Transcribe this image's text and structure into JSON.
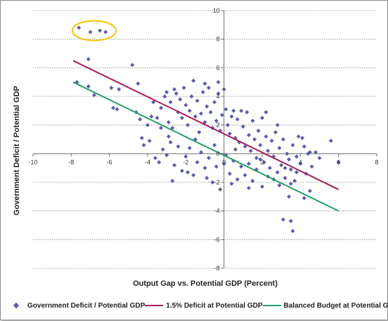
{
  "chart_data": {
    "type": "scatter",
    "xlabel": "Output Gap vs. Potential GDP (Percent)",
    "ylabel": "Government Deficit / Potential GDP",
    "xlim": [
      -10,
      8
    ],
    "ylim": [
      -8,
      10
    ],
    "xticks": [
      -10,
      -8,
      -6,
      -4,
      -2,
      0,
      2,
      4,
      6,
      8
    ],
    "yticks": [
      -8,
      -6,
      -4,
      -2,
      0,
      2,
      4,
      6,
      8,
      10
    ],
    "grid": "horizontal",
    "legend_position": "bottom",
    "highlight": {
      "shape": "ellipse",
      "color": "#f5c200",
      "center": [
        -6.8,
        8.6
      ]
    },
    "colors": {
      "scatter": "#5b5ea6",
      "deficit_line": "#a3205a",
      "balanced_line": "#21a06a",
      "grid": "#8a8a8a"
    },
    "series": [
      {
        "name": "Government Deficit / Potential GDP",
        "kind": "scatter",
        "points": [
          [
            -7.6,
            8.8
          ],
          [
            -7.0,
            8.5
          ],
          [
            -6.5,
            8.6
          ],
          [
            -6.2,
            8.5
          ],
          [
            -7.7,
            5.0
          ],
          [
            -7.1,
            6.6
          ],
          [
            -7.1,
            4.7
          ],
          [
            -6.8,
            4.1
          ],
          [
            -5.9,
            4.6
          ],
          [
            -5.5,
            4.5
          ],
          [
            -5.8,
            3.2
          ],
          [
            -5.6,
            3.1
          ],
          [
            -4.8,
            6.2
          ],
          [
            -4.6,
            2.9
          ],
          [
            -4.4,
            2.4
          ],
          [
            -4.3,
            1.1
          ],
          [
            -4.2,
            0.6
          ],
          [
            -4.5,
            4.9
          ],
          [
            -3.7,
            3.6
          ],
          [
            -3.5,
            2.5
          ],
          [
            -3.3,
            3.2
          ],
          [
            -3.1,
            4.0
          ],
          [
            -3.0,
            4.3
          ],
          [
            -2.9,
            2.2
          ],
          [
            -2.8,
            3.6
          ],
          [
            -2.7,
            1.8
          ],
          [
            -2.6,
            4.5
          ],
          [
            -2.5,
            4.2
          ],
          [
            -2.4,
            2.9
          ],
          [
            -2.3,
            3.8
          ],
          [
            -2.2,
            2.5
          ],
          [
            -2.1,
            4.6
          ],
          [
            -2.0,
            3.4
          ],
          [
            -1.9,
            2.0
          ],
          [
            -1.8,
            3.0
          ],
          [
            -1.7,
            4.0
          ],
          [
            -1.6,
            5.1
          ],
          [
            -1.5,
            2.6
          ],
          [
            -1.4,
            3.7
          ],
          [
            -1.3,
            1.5
          ],
          [
            -1.2,
            2.8
          ],
          [
            -1.1,
            4.3
          ],
          [
            -1.0,
            2.2
          ],
          [
            -0.9,
            3.3
          ],
          [
            -0.8,
            4.6
          ],
          [
            -0.7,
            2.9
          ],
          [
            -0.6,
            1.8
          ],
          [
            -0.5,
            3.6
          ],
          [
            -0.4,
            2.3
          ],
          [
            -0.3,
            4.2
          ],
          [
            -0.2,
            1.6
          ],
          [
            -0.1,
            2.7
          ],
          [
            0.1,
            3.1
          ],
          [
            0.2,
            2.0
          ],
          [
            0.3,
            1.4
          ],
          [
            0.4,
            2.6
          ],
          [
            0.5,
            3.0
          ],
          [
            0.6,
            1.1
          ],
          [
            0.7,
            2.4
          ],
          [
            0.8,
            0.8
          ],
          [
            0.9,
            3.0
          ],
          [
            1.0,
            1.9
          ],
          [
            1.1,
            0.5
          ],
          [
            1.2,
            2.9
          ],
          [
            1.3,
            1.3
          ],
          [
            1.4,
            0.2
          ],
          [
            1.5,
            2.3
          ],
          [
            1.6,
            1.0
          ],
          [
            1.7,
            -0.3
          ],
          [
            1.8,
            1.6
          ],
          [
            1.9,
            0.6
          ],
          [
            2.0,
            2.5
          ],
          [
            2.1,
            -0.6
          ],
          [
            2.2,
            1.2
          ],
          [
            2.3,
            0.2
          ],
          [
            2.4,
            -1.0
          ],
          [
            2.5,
            0.9
          ],
          [
            2.6,
            -0.2
          ],
          [
            2.7,
            1.5
          ],
          [
            2.8,
            -1.3
          ],
          [
            2.9,
            0.4
          ],
          [
            3.0,
            -0.8
          ],
          [
            3.1,
            1.0
          ],
          [
            3.2,
            -1.7
          ],
          [
            3.3,
            0.0
          ],
          [
            3.4,
            -0.4
          ],
          [
            3.5,
            -1.1
          ],
          [
            3.6,
            0.6
          ],
          [
            3.7,
            -1.9
          ],
          [
            3.8,
            -0.2
          ],
          [
            3.9,
            1.2
          ],
          [
            4.0,
            -0.7
          ],
          [
            4.1,
            1.1
          ],
          [
            4.2,
            0.5
          ],
          [
            4.3,
            -1.4
          ],
          [
            4.4,
            0.0
          ],
          [
            4.5,
            0.1
          ],
          [
            4.6,
            -0.9
          ],
          [
            4.8,
            0.1
          ],
          [
            5.0,
            -0.3
          ],
          [
            5.6,
            0.9
          ],
          [
            6.0,
            -0.6
          ],
          [
            -4.0,
            2.0
          ],
          [
            -3.9,
            0.9
          ],
          [
            -3.6,
            -0.3
          ],
          [
            -3.2,
            0.3
          ],
          [
            -3.0,
            -0.1
          ],
          [
            -2.8,
            0.8
          ],
          [
            -2.6,
            -0.8
          ],
          [
            -2.4,
            0.5
          ],
          [
            -2.2,
            -1.2
          ],
          [
            -2.0,
            -0.2
          ],
          [
            -1.8,
            0.4
          ],
          [
            -1.6,
            -1.5
          ],
          [
            -1.4,
            -0.6
          ],
          [
            -1.2,
            0.1
          ],
          [
            -1.0,
            -1.0
          ],
          [
            -0.8,
            -0.3
          ],
          [
            -0.6,
            -2.0
          ],
          [
            -0.4,
            -0.9
          ],
          [
            -0.2,
            -2.5
          ],
          [
            0.0,
            -0.7
          ],
          [
            0.1,
            -0.1
          ],
          [
            0.3,
            -1.4
          ],
          [
            0.5,
            -0.5
          ],
          [
            0.7,
            -1.8
          ],
          [
            0.9,
            -0.9
          ],
          [
            1.1,
            -1.5
          ],
          [
            1.3,
            -0.7
          ],
          [
            1.5,
            -1.9
          ],
          [
            1.7,
            -1.1
          ],
          [
            2.0,
            -2.3
          ],
          [
            2.3,
            -1.6
          ],
          [
            2.6,
            -1.8
          ],
          [
            2.9,
            -2.2
          ],
          [
            3.2,
            -1.0
          ],
          [
            3.5,
            -2.1
          ],
          [
            3.8,
            -1.3
          ],
          [
            1.3,
            -2.4
          ],
          [
            0.4,
            -2.1
          ],
          [
            -0.9,
            -1.7
          ],
          [
            -1.9,
            -1.3
          ],
          [
            -3.4,
            -0.6
          ],
          [
            -2.7,
            -1.9
          ],
          [
            3.1,
            -4.6
          ],
          [
            3.5,
            -4.7
          ],
          [
            3.6,
            -5.4
          ],
          [
            4.2,
            -3.1
          ],
          [
            4.5,
            -2.6
          ],
          [
            3.4,
            -3.0
          ],
          [
            -3.8,
            2.6
          ],
          [
            -2.9,
            1.2
          ],
          [
            -1.5,
            1.0
          ],
          [
            -0.5,
            0.6
          ],
          [
            0.6,
            0.3
          ],
          [
            1.9,
            -0.4
          ],
          [
            2.2,
            2.9
          ],
          [
            2.8,
            2.0
          ],
          [
            -3.3,
            1.8
          ],
          [
            -0.3,
            5.0
          ],
          [
            -1.0,
            4.9
          ],
          [
            0.0,
            4.5
          ]
        ]
      },
      {
        "name": "1.5% Deficit at Potential GDP",
        "kind": "line",
        "points": [
          [
            -7.9,
            6.5
          ],
          [
            6.0,
            -2.5
          ]
        ]
      },
      {
        "name": "Balanced Budget at Potential GDP",
        "kind": "line",
        "points": [
          [
            -7.9,
            5.0
          ],
          [
            6.0,
            -4.0
          ]
        ]
      }
    ]
  }
}
